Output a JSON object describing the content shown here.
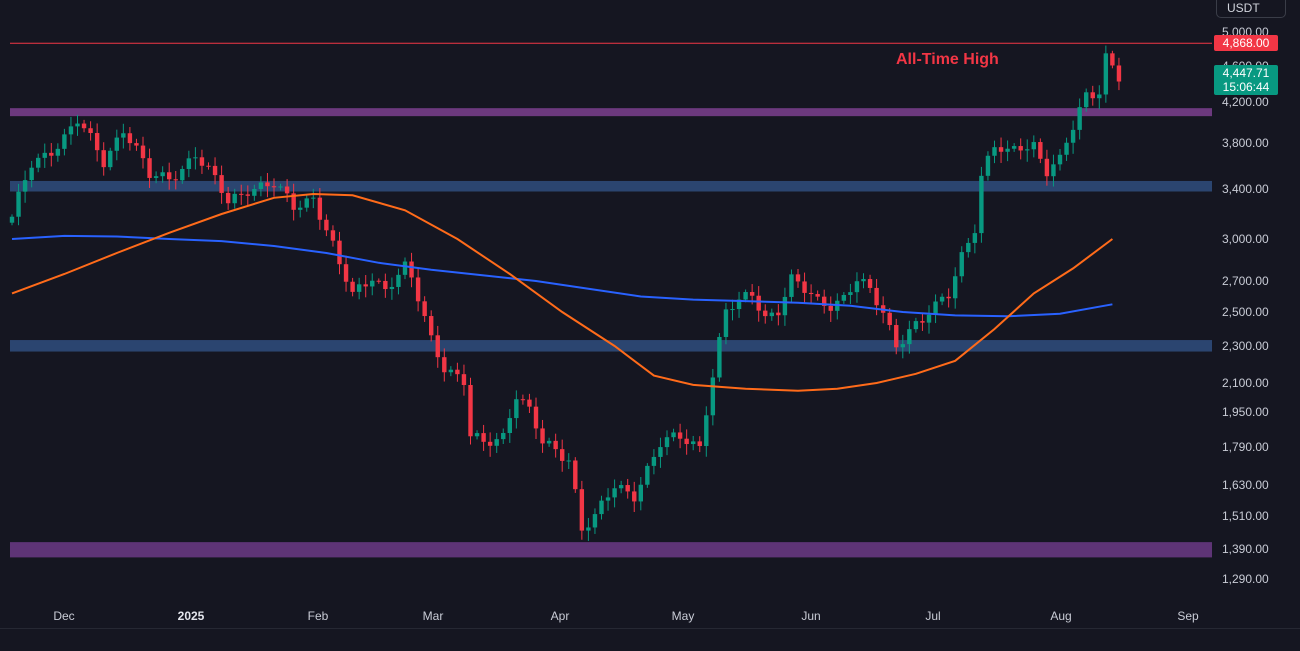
{
  "header": {
    "currency": "USDT"
  },
  "chart_data": {
    "type": "candlestick",
    "y_axis_ticks": [
      "5,000.00",
      "4,600.00",
      "4,200.00",
      "3,800.00",
      "3,400.00",
      "3,000.00",
      "2,700.00",
      "2,500.00",
      "2,300.00",
      "2,100.00",
      "1,950.00",
      "1,790.00",
      "1,630.00",
      "1,510.00",
      "1,390.00",
      "1,290.00"
    ],
    "y_axis_values": [
      5000,
      4600,
      4200,
      3800,
      3400,
      3000,
      2700,
      2500,
      2300,
      2100,
      1950,
      1790,
      1630,
      1510,
      1390,
      1290
    ],
    "x_axis_ticks": [
      {
        "label": "Dec",
        "bold": false
      },
      {
        "label": "2025",
        "bold": true
      },
      {
        "label": "Feb",
        "bold": false
      },
      {
        "label": "Mar",
        "bold": false
      },
      {
        "label": "Apr",
        "bold": false
      },
      {
        "label": "May",
        "bold": false
      },
      {
        "label": "Jun",
        "bold": false
      },
      {
        "label": "Jul",
        "bold": false
      },
      {
        "label": "Aug",
        "bold": false
      },
      {
        "label": "Sep",
        "bold": false
      }
    ],
    "annotation": "All-Time High",
    "ath_price": "4,868.00",
    "ath_value": 4868,
    "last_price": "4,447.71",
    "last_value": 4448,
    "countdown": "15:06:44",
    "zones": [
      {
        "low": 4070,
        "high": 4140,
        "color": "#7b3f8e"
      },
      {
        "low": 3380,
        "high": 3470,
        "color": "#2f4d7e"
      },
      {
        "low": 2270,
        "high": 2335,
        "color": "#2f4d7e"
      },
      {
        "low": 1362,
        "high": 1415,
        "color": "#6b3a85"
      }
    ],
    "price_anchors": [
      [
        0,
        3150
      ],
      [
        3,
        3620
      ],
      [
        8,
        3850
      ],
      [
        10,
        4000
      ],
      [
        14,
        3650
      ],
      [
        17,
        3950
      ],
      [
        21,
        3500
      ],
      [
        24,
        3500
      ],
      [
        28,
        3700
      ],
      [
        33,
        3300
      ],
      [
        36,
        3420
      ],
      [
        40,
        3420
      ],
      [
        43,
        3260
      ],
      [
        46,
        3350
      ],
      [
        50,
        2800
      ],
      [
        52,
        2600
      ],
      [
        55,
        2750
      ],
      [
        57,
        2650
      ],
      [
        60,
        2780
      ],
      [
        61,
        2700
      ],
      [
        64,
        2350
      ],
      [
        66,
        2200
      ],
      [
        69,
        2100
      ],
      [
        70,
        1830
      ],
      [
        72,
        1800
      ],
      [
        75,
        1850
      ],
      [
        77,
        2050
      ],
      [
        79,
        1950
      ],
      [
        81,
        1800
      ],
      [
        85,
        1750
      ],
      [
        87,
        1470
      ],
      [
        89,
        1500
      ],
      [
        92,
        1620
      ],
      [
        95,
        1600
      ],
      [
        99,
        1800
      ],
      [
        102,
        1830
      ],
      [
        105,
        1800
      ],
      [
        107,
        2150
      ],
      [
        109,
        2500
      ],
      [
        111,
        2550
      ],
      [
        113,
        2620
      ],
      [
        115,
        2480
      ],
      [
        117,
        2520
      ],
      [
        119,
        2700
      ],
      [
        121,
        2630
      ],
      [
        123,
        2570
      ],
      [
        125,
        2560
      ],
      [
        127,
        2600
      ],
      [
        129,
        2700
      ],
      [
        131,
        2620
      ],
      [
        133,
        2500
      ],
      [
        135,
        2320
      ],
      [
        137,
        2400
      ],
      [
        139,
        2440
      ],
      [
        141,
        2520
      ],
      [
        143,
        2620
      ],
      [
        145,
        2900
      ],
      [
        147,
        3100
      ],
      [
        148,
        3500
      ],
      [
        150,
        3750
      ],
      [
        152,
        3700
      ],
      [
        154,
        3800
      ],
      [
        156,
        3800
      ],
      [
        158,
        3550
      ],
      [
        160,
        3620
      ],
      [
        162,
        3950
      ],
      [
        164,
        4300
      ],
      [
        166,
        4350
      ],
      [
        167,
        4720
      ],
      [
        169,
        4450
      ]
    ],
    "series": [
      {
        "type": "line",
        "color": "#2962ff",
        "points": [
          [
            0,
            3000
          ],
          [
            8,
            3025
          ],
          [
            16,
            3020
          ],
          [
            24,
            3000
          ],
          [
            32,
            2985
          ],
          [
            40,
            2950
          ],
          [
            48,
            2900
          ],
          [
            56,
            2830
          ],
          [
            64,
            2780
          ],
          [
            72,
            2740
          ],
          [
            80,
            2700
          ],
          [
            88,
            2650
          ],
          [
            96,
            2600
          ],
          [
            104,
            2580
          ],
          [
            112,
            2570
          ],
          [
            120,
            2560
          ],
          [
            128,
            2540
          ],
          [
            136,
            2500
          ],
          [
            144,
            2480
          ],
          [
            152,
            2475
          ],
          [
            160,
            2490
          ],
          [
            168,
            2550
          ]
        ]
      },
      {
        "type": "line",
        "color": "#ff6b1a",
        "points": [
          [
            0,
            2620
          ],
          [
            8,
            2750
          ],
          [
            16,
            2900
          ],
          [
            24,
            3050
          ],
          [
            32,
            3200
          ],
          [
            40,
            3330
          ],
          [
            46,
            3360
          ],
          [
            52,
            3350
          ],
          [
            60,
            3230
          ],
          [
            68,
            3000
          ],
          [
            76,
            2750
          ],
          [
            84,
            2500
          ],
          [
            92,
            2300
          ],
          [
            98,
            2140
          ],
          [
            104,
            2090
          ],
          [
            112,
            2070
          ],
          [
            120,
            2060
          ],
          [
            126,
            2070
          ],
          [
            132,
            2100
          ],
          [
            138,
            2150
          ],
          [
            144,
            2220
          ],
          [
            150,
            2400
          ],
          [
            156,
            2620
          ],
          [
            162,
            2790
          ],
          [
            168,
            3000
          ]
        ]
      }
    ]
  }
}
